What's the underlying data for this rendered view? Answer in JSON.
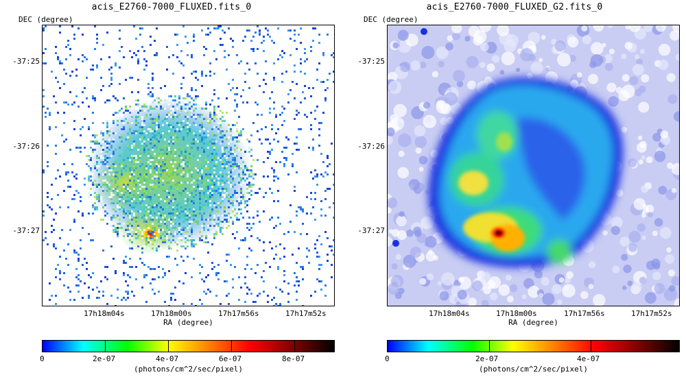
{
  "left": {
    "title": "acis_E2760-7000_FLUXED.fits_0",
    "dec_label": "DEC (degree)",
    "yticks": [
      "-37:25",
      "-37:26",
      "-37:27"
    ],
    "xticks": [
      "17h18m04s",
      "17h18m00s",
      "17h17m56s",
      "17h17m52s"
    ],
    "ra_label": "RA (degree)",
    "colorbar_ticks": [
      "0",
      "2e-07",
      "4e-07",
      "6e-07",
      "8e-07"
    ],
    "colorbar_units": "(photons/cm^2/sec/pixel)",
    "colormap_colors": [
      "#ffffff",
      "#0000ff",
      "#00ffff",
      "#00ff00",
      "#ffff00",
      "#ff8000",
      "#ff0000",
      "#800000",
      "#000000"
    ]
  },
  "right": {
    "title": "acis_E2760-7000_FLUXED_G2.fits_0",
    "dec_label": "DEC (degree)",
    "yticks": [
      "-37:25",
      "-37:26",
      "-37:27"
    ],
    "xticks": [
      "17h18m04s",
      "17h18m00s",
      "17h17m56s",
      "17h17m52s"
    ],
    "ra_label": "RA (degree)",
    "colorbar_ticks": [
      "0",
      "2e-07",
      "4e-07"
    ],
    "colorbar_units": "(photons/cm^2/sec/pixel)",
    "colormap_colors": [
      "#ffffff",
      "#0000ff",
      "#00ffff",
      "#00ff00",
      "#ffff00",
      "#ff8000",
      "#ff0000",
      "#800000",
      "#000000"
    ]
  }
}
